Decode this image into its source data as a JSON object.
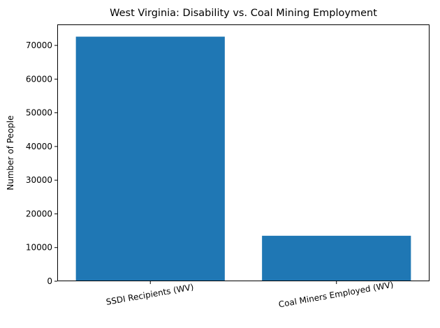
{
  "chart_data": {
    "type": "bar",
    "title": "West Virginia: Disability vs. Coal Mining Employment",
    "xlabel": "",
    "ylabel": "Number of People",
    "categories": [
      "SSDI Recipients (WV)",
      "Coal Miners Employed (WV)"
    ],
    "values": [
      72600,
      13500
    ],
    "ylim": [
      0,
      76230
    ],
    "yticks": [
      0,
      10000,
      20000,
      30000,
      40000,
      50000,
      60000,
      70000
    ],
    "bar_color": "#1f77b4",
    "grid": false,
    "legend": "none"
  }
}
